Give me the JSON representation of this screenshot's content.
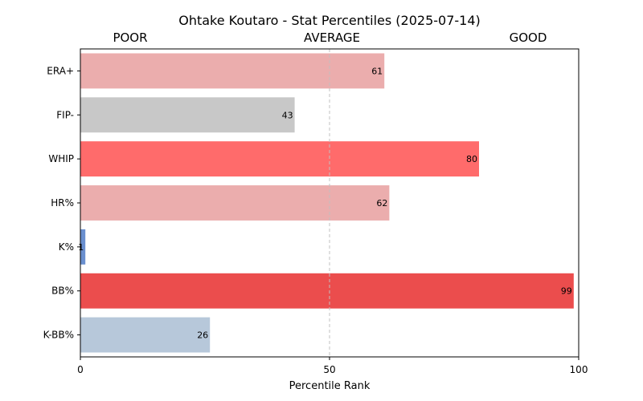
{
  "chart_data": {
    "type": "bar",
    "orientation": "horizontal",
    "title": "Ohtake Koutaro - Stat Percentiles (2025-07-14)",
    "xlabel": "Percentile Rank",
    "ylabel": "",
    "xlim": [
      0,
      100
    ],
    "xticks": [
      "0",
      "50",
      "100"
    ],
    "tier_labels": [
      "POOR",
      "AVERAGE",
      "GOOD"
    ],
    "reference_line": 50,
    "categories": [
      "ERA+",
      "FIP-",
      "WHIP",
      "HR%",
      "K%",
      "BB%",
      "K-BB%"
    ],
    "values": [
      61,
      43,
      80,
      62,
      1,
      99,
      26
    ],
    "value_labels": [
      "61",
      "43",
      "80",
      "62",
      "1",
      "99",
      "26"
    ],
    "colors": [
      "#ebadad",
      "#c8c8c8",
      "#ff6b6b",
      "#ebadad",
      "#6a8fcf",
      "#eb4d4d",
      "#b7c8da"
    ]
  }
}
